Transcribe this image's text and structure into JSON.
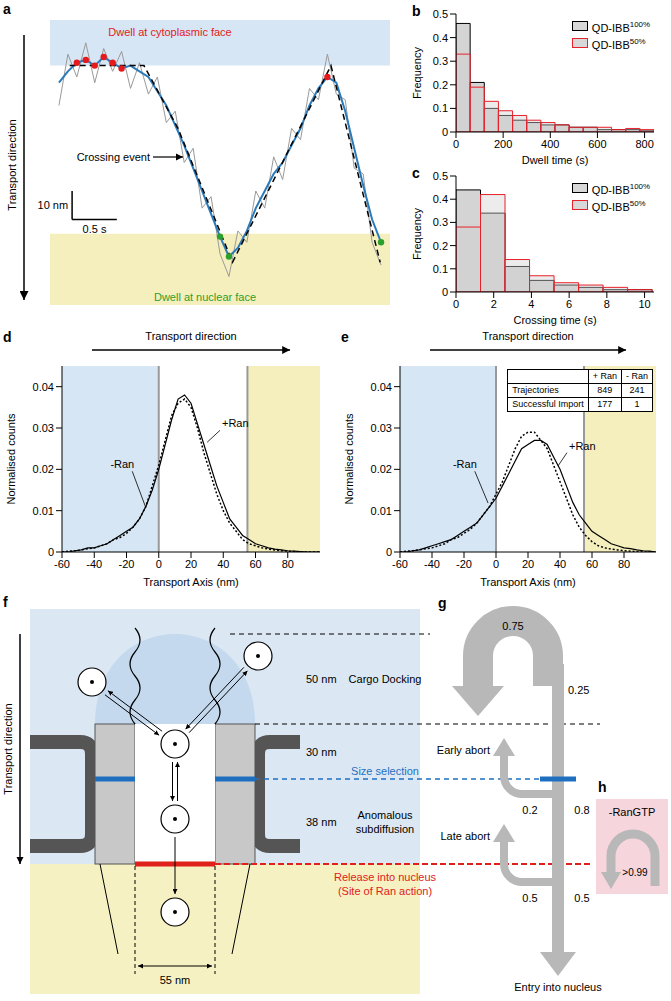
{
  "chart_data": [
    {
      "label": "a",
      "type": "line",
      "tick_labels": false,
      "xlim": [
        0,
        3.8
      ],
      "ylim": [
        0,
        100
      ],
      "bands": [
        {
          "y": [
            84,
            100
          ],
          "color": "#d6e6f4"
        },
        {
          "y": [
            0,
            25
          ],
          "color": "#f5efbd"
        }
      ],
      "series": [
        {
          "color": "#9a9a9a",
          "x": [
            0.1,
            0.2,
            0.3,
            0.4,
            0.5,
            0.6,
            0.7,
            0.8,
            0.9,
            1.0,
            1.1,
            1.2,
            1.3,
            1.4,
            1.5,
            1.6,
            1.7,
            1.8,
            1.9,
            2.0,
            2.1,
            2.2,
            2.3,
            2.4,
            2.5,
            2.6,
            2.7,
            2.8,
            2.9,
            3.0,
            3.1,
            3.2,
            3.3,
            3.4,
            3.5,
            3.6,
            3.7
          ],
          "values": [
            70,
            88,
            80,
            92,
            78,
            90,
            82,
            89,
            76,
            85,
            74,
            80,
            64,
            68,
            50,
            55,
            34,
            38,
            18,
            10,
            26,
            22,
            40,
            34,
            52,
            44,
            62,
            58,
            76,
            72,
            88,
            74,
            72,
            48,
            46,
            22,
            14
          ]
        },
        {
          "color": "#2b7bba",
          "x": [
            0.1,
            0.2,
            0.3,
            0.4,
            0.5,
            0.6,
            0.7,
            0.8,
            0.9,
            1.0,
            1.1,
            1.2,
            1.3,
            1.4,
            1.5,
            1.6,
            1.7,
            1.8,
            1.9,
            2.0,
            2.1,
            2.2,
            2.3,
            2.4,
            2.5,
            2.6,
            2.7,
            2.8,
            2.9,
            3.0,
            3.1,
            3.2,
            3.3,
            3.4,
            3.5,
            3.6,
            3.7
          ],
          "values": [
            78,
            82,
            85,
            86,
            84,
            87,
            85,
            83,
            84,
            82,
            80,
            75,
            70,
            63,
            56,
            48,
            40,
            32,
            24,
            17,
            20,
            26,
            34,
            40,
            46,
            50,
            56,
            62,
            70,
            76,
            80,
            78,
            68,
            55,
            42,
            30,
            22
          ]
        },
        {
          "color": "#000000",
          "line_style": "dashed",
          "x": [
            0.22,
            1.05,
            1.43,
            2.04,
            3.14,
            3.69
          ],
          "values": [
            84,
            84,
            62,
            15,
            84,
            15
          ]
        },
        {
          "type": "scatter",
          "marker": "circle",
          "color": "#e41a1c",
          "x": [
            0.3,
            0.4,
            0.5,
            0.6,
            0.7,
            0.8,
            3.1
          ],
          "values": [
            85,
            86,
            84,
            87,
            85,
            83,
            80
          ]
        },
        {
          "type": "scatter",
          "marker": "circle",
          "color": "#2ca02c",
          "x": [
            1.9,
            2.0,
            3.7
          ],
          "values": [
            24,
            17,
            22
          ]
        }
      ],
      "annotations": [
        {
          "text": "Dwell at cytoplasmic face",
          "color": "#e41a1c"
        },
        {
          "text": "Crossing event",
          "color": "#000000"
        },
        {
          "text": "Dwell at nuclear face",
          "color": "#2ca02c"
        },
        {
          "text": "Transport direction",
          "color": "#000000"
        }
      ],
      "scale_bar": {
        "x": 0.5,
        "x_label": "0.5 s",
        "y": 10,
        "y_label": "10 nm"
      }
    },
    {
      "label": "b",
      "type": "histogram",
      "xlabel": "Dwell time (s)",
      "ylabel": "Frequency",
      "bins": [
        0,
        60,
        120,
        180,
        240,
        300,
        360,
        420,
        480,
        540,
        600,
        660,
        720,
        780,
        840
      ],
      "xlim": [
        0,
        840
      ],
      "xticks": [
        0,
        200,
        400,
        600,
        800
      ],
      "ylim": [
        0,
        0.5
      ],
      "yticks": [
        0,
        0.1,
        0.2,
        0.3,
        0.4,
        0.5
      ],
      "legend": "upper right",
      "series": [
        {
          "name": "QD-IBB100%",
          "color": "#000000",
          "values": [
            0.46,
            0.21,
            0.1,
            0.07,
            0.05,
            0.04,
            0.03,
            0.03,
            0.02,
            0.02,
            0.01,
            0.01,
            0.01,
            0.005
          ]
        },
        {
          "name": "QD-IBB50%",
          "color": "#e8202a",
          "values": [
            0.33,
            0.19,
            0.13,
            0.09,
            0.07,
            0.05,
            0.04,
            0.03,
            0.02,
            0.02,
            0.02,
            0.01,
            0.015,
            0.01
          ]
        }
      ]
    },
    {
      "label": "c",
      "type": "histogram",
      "xlabel": "Crossing time (s)",
      "ylabel": "Frequency",
      "bins": [
        0,
        1.3,
        2.6,
        3.9,
        5.2,
        6.5,
        7.8,
        9.1,
        10.4
      ],
      "xlim": [
        0,
        10.5
      ],
      "xticks": [
        0,
        2,
        4,
        6,
        8,
        10
      ],
      "ylim": [
        0,
        0.5
      ],
      "yticks": [
        0,
        0.1,
        0.2,
        0.3,
        0.4,
        0.5
      ],
      "legend": "upper right",
      "series": [
        {
          "name": "QD-IBB100%",
          "color": "#000000",
          "values": [
            0.44,
            0.34,
            0.11,
            0.05,
            0.03,
            0.02,
            0.01,
            0.01
          ]
        },
        {
          "name": "QD-IBB50%",
          "color": "#e8202a",
          "values": [
            0.28,
            0.42,
            0.14,
            0.07,
            0.04,
            0.03,
            0.02,
            0.01
          ]
        }
      ]
    },
    {
      "label": "d",
      "type": "line",
      "annotation": "Transport direction",
      "xlabel": "Transport Axis (nm)",
      "ylabel": "Normalised counts",
      "x": [
        -60,
        -56,
        -52,
        -48,
        -44,
        -40,
        -36,
        -32,
        -28,
        -24,
        -20,
        -16,
        -12,
        -8,
        -4,
        0,
        4,
        8,
        12,
        16,
        20,
        24,
        28,
        32,
        36,
        40,
        44,
        48,
        52,
        56,
        60,
        64,
        68,
        72,
        76,
        80,
        84,
        88,
        92,
        96,
        100
      ],
      "xlim": [
        -60,
        100
      ],
      "xticks": [
        -60,
        -40,
        -20,
        0,
        20,
        40,
        60,
        80
      ],
      "ylim": [
        0,
        0.045
      ],
      "yticks": [
        0,
        0.01,
        0.02,
        0.03,
        0.04
      ],
      "regions": [
        {
          "x": [
            -60,
            0
          ],
          "color": "#d6e6f4"
        },
        {
          "x": [
            55,
            100
          ],
          "color": "#f5efbd"
        }
      ],
      "series": [
        {
          "name": "-Ran",
          "color": "#000000",
          "line_style": "dotted",
          "values": [
            0,
            0.0002,
            0.0003,
            0.0005,
            0.0008,
            0.001,
            0.0015,
            0.002,
            0.003,
            0.0035,
            0.0045,
            0.006,
            0.008,
            0.011,
            0.016,
            0.021,
            0.027,
            0.033,
            0.036,
            0.037,
            0.035,
            0.03,
            0.024,
            0.019,
            0.014,
            0.01,
            0.007,
            0.005,
            0.003,
            0.002,
            0.0015,
            0.001,
            0.0007,
            0.0005,
            0.0003,
            0.0002,
            0.0001,
            0,
            0,
            0,
            0
          ]
        },
        {
          "name": "+Ran",
          "color": "#000000",
          "line_style": "solid",
          "values": [
            0,
            0,
            0.0003,
            0.0005,
            0.001,
            0.001,
            0.0015,
            0.002,
            0.003,
            0.004,
            0.005,
            0.006,
            0.008,
            0.011,
            0.015,
            0.02,
            0.026,
            0.032,
            0.037,
            0.038,
            0.036,
            0.031,
            0.026,
            0.021,
            0.016,
            0.012,
            0.008,
            0.006,
            0.004,
            0.003,
            0.002,
            0.0015,
            0.001,
            0.0007,
            0.0005,
            0.0003,
            0.0002,
            0.0001,
            0,
            0,
            0
          ]
        }
      ]
    },
    {
      "label": "e",
      "type": "line",
      "annotation": "Transport direction",
      "xlabel": "Transport Axis (nm)",
      "ylabel": "Normalised counts",
      "x": [
        -60,
        -56,
        -52,
        -48,
        -44,
        -40,
        -36,
        -32,
        -28,
        -24,
        -20,
        -16,
        -12,
        -8,
        -4,
        0,
        4,
        8,
        12,
        16,
        20,
        24,
        28,
        32,
        36,
        40,
        44,
        48,
        52,
        56,
        60,
        64,
        68,
        72,
        76,
        80,
        84,
        88,
        92,
        96,
        100
      ],
      "xlim": [
        -60,
        100
      ],
      "xticks": [
        -60,
        -40,
        -20,
        0,
        20,
        40,
        60,
        80
      ],
      "ylim": [
        0,
        0.045
      ],
      "yticks": [
        0,
        0.01,
        0.02,
        0.03,
        0.04
      ],
      "regions": [
        {
          "x": [
            -60,
            0
          ],
          "color": "#d6e6f4"
        },
        {
          "x": [
            55,
            100
          ],
          "color": "#f5efbd"
        }
      ],
      "series": [
        {
          "name": "-Ran",
          "color": "#000000",
          "line_style": "dotted",
          "values": [
            0,
            0.0002,
            0.0003,
            0.0005,
            0.0008,
            0.001,
            0.0015,
            0.002,
            0.003,
            0.0035,
            0.0045,
            0.0055,
            0.007,
            0.009,
            0.011,
            0.014,
            0.017,
            0.021,
            0.025,
            0.028,
            0.029,
            0.029,
            0.027,
            0.025,
            0.021,
            0.017,
            0.013,
            0.009,
            0.006,
            0.004,
            0.0025,
            0.0015,
            0.001,
            0.0007,
            0.0005,
            0.0003,
            0.0002,
            0.0001,
            0,
            0,
            0
          ]
        },
        {
          "name": "+Ran",
          "color": "#000000",
          "line_style": "solid",
          "values": [
            0,
            0,
            0.0003,
            0.0005,
            0.001,
            0.0015,
            0.002,
            0.0025,
            0.003,
            0.004,
            0.005,
            0.006,
            0.007,
            0.009,
            0.011,
            0.013,
            0.016,
            0.019,
            0.022,
            0.025,
            0.026,
            0.027,
            0.027,
            0.026,
            0.023,
            0.02,
            0.016,
            0.012,
            0.009,
            0.007,
            0.005,
            0.004,
            0.003,
            0.002,
            0.0015,
            0.001,
            0.0008,
            0.0005,
            0.0003,
            0.0002,
            0
          ]
        }
      ],
      "table": {
        "columns": [
          "+ Ran",
          "- Ran"
        ],
        "rows": [
          {
            "label": "Trajectories",
            "values": [
              849,
              241
            ]
          },
          {
            "label": "Successful Import",
            "values": [
              177,
              1
            ]
          }
        ]
      }
    }
  ],
  "diagram": {
    "f": {
      "label": "f",
      "transport_direction": "Transport direction",
      "zones": [
        {
          "size": "50 nm",
          "name": "Cargo Docking"
        },
        {
          "size": "30 nm"
        },
        {
          "size": "38 nm",
          "name": "Anomalous subdiffusion"
        }
      ],
      "pore_width": "55 nm",
      "size_selection": "Size selection",
      "release": "Release into nucleus (Site of Ran action)"
    },
    "g": {
      "label": "g",
      "docking": {
        "abort": 0.75,
        "pass": 0.25
      },
      "early": {
        "name": "Early abort",
        "abort": 0.2,
        "pass": 0.8
      },
      "late": {
        "name": "Late abort",
        "abort": 0.5,
        "pass": 0.5
      },
      "entry": "Entry into nucleus"
    },
    "h": {
      "label": "h",
      "condition": "-RanGTP",
      "abort": ">0.99"
    }
  }
}
